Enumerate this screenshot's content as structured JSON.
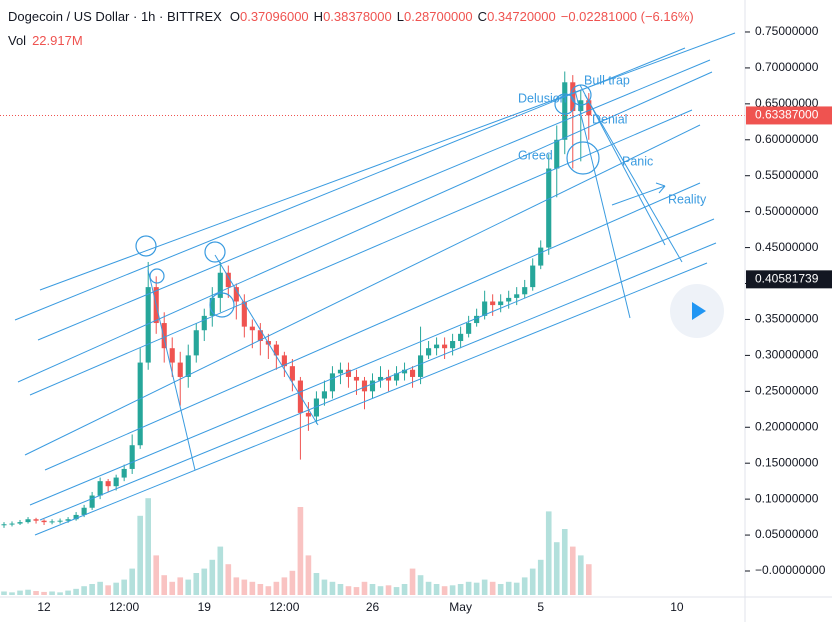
{
  "chart_data": {
    "type": "candlestick",
    "title": "Dogecoin / US Dollar · 1h · BITTREX",
    "ohlc_legend": [
      {
        "key": "O",
        "value": "0.37096000"
      },
      {
        "key": "H",
        "value": "0.38378000"
      },
      {
        "key": "L",
        "value": "0.28700000"
      },
      {
        "key": "C",
        "value": "0.34720000"
      }
    ],
    "change": "−0.02281000 (−6.16%)",
    "volume_legend": {
      "key": "Vol",
      "value": "22.917M"
    },
    "up_color": "#26a69a",
    "down_color": "#ef5350",
    "categories": [
      null,
      null,
      null,
      null,
      null,
      "12",
      null,
      null,
      null,
      null,
      null,
      null,
      null,
      null,
      null,
      "12:00",
      null,
      null,
      null,
      null,
      null,
      null,
      null,
      null,
      null,
      "19",
      null,
      null,
      null,
      null,
      null,
      null,
      null,
      null,
      null,
      "12:00",
      null,
      null,
      null,
      null,
      null,
      null,
      null,
      null,
      null,
      null,
      "26",
      null,
      null,
      null,
      null,
      null,
      null,
      null,
      null,
      null,
      null,
      "May",
      null,
      null,
      null,
      null,
      null,
      null,
      null,
      null,
      null,
      "5",
      null,
      null,
      null,
      null,
      null,
      null,
      null,
      null,
      null,
      null,
      null,
      null,
      null,
      null,
      null,
      null,
      "10",
      null,
      null,
      null,
      null,
      null,
      null,
      null,
      null
    ],
    "open": [
      0.064,
      0.065,
      0.066,
      0.068,
      0.072,
      0.07,
      0.068,
      0.069,
      0.07,
      0.072,
      0.078,
      0.088,
      0.105,
      0.125,
      0.118,
      0.13,
      0.142,
      0.175,
      0.29,
      0.395,
      0.345,
      0.31,
      0.29,
      0.27,
      0.3,
      0.335,
      0.355,
      0.38,
      0.415,
      0.395,
      0.375,
      0.34,
      0.335,
      0.32,
      0.315,
      0.3,
      0.285,
      0.265,
      0.22,
      0.215,
      0.24,
      0.25,
      0.275,
      0.28,
      0.27,
      0.265,
      0.25,
      0.265,
      0.27,
      0.265,
      0.275,
      0.28,
      0.27,
      0.3,
      0.31,
      0.315,
      0.31,
      0.32,
      0.33,
      0.345,
      0.355,
      0.375,
      0.37,
      0.375,
      0.38,
      0.385,
      0.395,
      0.425,
      0.45,
      0.56,
      0.6,
      0.68,
      0.64,
      0.655,
      null,
      null,
      null,
      null,
      null,
      null,
      null,
      null,
      null,
      null,
      null,
      null,
      null,
      null,
      null,
      null,
      null,
      null,
      null
    ],
    "high": [
      0.068,
      0.069,
      0.071,
      0.075,
      0.074,
      0.072,
      0.072,
      0.073,
      0.075,
      0.082,
      0.092,
      0.11,
      0.13,
      0.128,
      0.134,
      0.148,
      0.19,
      0.31,
      0.43,
      0.41,
      0.36,
      0.325,
      0.305,
      0.315,
      0.345,
      0.365,
      0.395,
      0.43,
      0.425,
      0.4,
      0.385,
      0.35,
      0.345,
      0.33,
      0.32,
      0.305,
      0.295,
      0.27,
      0.235,
      0.25,
      0.265,
      0.285,
      0.29,
      0.29,
      0.28,
      0.27,
      0.275,
      0.285,
      0.28,
      0.285,
      0.29,
      0.285,
      0.34,
      0.32,
      0.325,
      0.325,
      0.33,
      0.34,
      0.355,
      0.365,
      0.39,
      0.385,
      0.385,
      0.39,
      0.395,
      0.405,
      0.435,
      0.46,
      0.58,
      0.62,
      0.695,
      0.69,
      0.67,
      0.665,
      null,
      null,
      null,
      null,
      null,
      null,
      null,
      null,
      null,
      null,
      null,
      null,
      null,
      null,
      null,
      null,
      null,
      null,
      null
    ],
    "low": [
      0.06,
      0.062,
      0.064,
      0.066,
      0.066,
      0.064,
      0.065,
      0.066,
      0.067,
      0.07,
      0.075,
      0.085,
      0.1,
      0.11,
      0.112,
      0.125,
      0.135,
      0.17,
      0.28,
      0.33,
      0.29,
      0.27,
      0.23,
      0.255,
      0.29,
      0.32,
      0.34,
      0.36,
      0.38,
      0.35,
      0.325,
      0.31,
      0.3,
      0.295,
      0.28,
      0.27,
      0.25,
      0.155,
      0.195,
      0.205,
      0.23,
      0.24,
      0.26,
      0.255,
      0.245,
      0.225,
      0.24,
      0.255,
      0.25,
      0.258,
      0.265,
      0.255,
      0.26,
      0.295,
      0.3,
      0.295,
      0.3,
      0.31,
      0.325,
      0.34,
      0.35,
      0.355,
      0.36,
      0.365,
      0.37,
      0.38,
      0.39,
      0.42,
      0.44,
      0.52,
      0.58,
      0.56,
      0.57,
      0.6,
      null,
      null,
      null,
      null,
      null,
      null,
      null,
      null,
      null,
      null,
      null,
      null,
      null,
      null,
      null,
      null,
      null,
      null,
      null
    ],
    "close": [
      0.065,
      0.066,
      0.068,
      0.072,
      0.07,
      0.068,
      0.069,
      0.07,
      0.072,
      0.078,
      0.088,
      0.105,
      0.125,
      0.118,
      0.13,
      0.142,
      0.175,
      0.29,
      0.395,
      0.345,
      0.31,
      0.29,
      0.27,
      0.3,
      0.335,
      0.355,
      0.38,
      0.415,
      0.395,
      0.375,
      0.34,
      0.335,
      0.32,
      0.315,
      0.3,
      0.285,
      0.265,
      0.22,
      0.215,
      0.24,
      0.25,
      0.275,
      0.28,
      0.27,
      0.265,
      0.25,
      0.265,
      0.27,
      0.265,
      0.275,
      0.28,
      0.27,
      0.3,
      0.31,
      0.315,
      0.31,
      0.32,
      0.33,
      0.345,
      0.355,
      0.375,
      0.37,
      0.375,
      0.38,
      0.385,
      0.395,
      0.425,
      0.45,
      0.56,
      0.6,
      0.68,
      0.64,
      0.655,
      0.634,
      null,
      null,
      null,
      null,
      null,
      null,
      null,
      null,
      null,
      null,
      null,
      null,
      null,
      null,
      null,
      null,
      null,
      null,
      null
    ],
    "volume": [
      8,
      6,
      10,
      12,
      9,
      7,
      8,
      6,
      10,
      14,
      20,
      25,
      30,
      22,
      28,
      35,
      60,
      180,
      220,
      90,
      45,
      30,
      40,
      35,
      50,
      60,
      80,
      110,
      70,
      40,
      35,
      30,
      25,
      20,
      30,
      40,
      55,
      200,
      90,
      50,
      35,
      30,
      25,
      20,
      18,
      30,
      25,
      20,
      22,
      18,
      25,
      60,
      45,
      30,
      25,
      20,
      22,
      25,
      30,
      28,
      35,
      30,
      25,
      30,
      28,
      40,
      60,
      80,
      190,
      120,
      150,
      110,
      90,
      70,
      null,
      null,
      null,
      null,
      null,
      null,
      null,
      null,
      null,
      null,
      null,
      null,
      null,
      null,
      null,
      null,
      null,
      null,
      null
    ],
    "volume_lim": [
      0,
      250
    ],
    "ylim": [
      -0.0334,
      0.7945
    ],
    "yticks": [
      {
        "value": 0.75,
        "label": "0.75000000"
      },
      {
        "value": 0.7,
        "label": "0.70000000"
      },
      {
        "value": 0.65,
        "label": "0.65000000"
      },
      {
        "value": 0.6,
        "label": "0.60000000"
      },
      {
        "value": 0.55,
        "label": "0.55000000"
      },
      {
        "value": 0.5,
        "label": "0.50000000"
      },
      {
        "value": 0.45,
        "label": "0.45000000"
      },
      {
        "value": 0.4,
        "label": "0.40000000"
      },
      {
        "value": 0.35,
        "label": "0.35000000"
      },
      {
        "value": 0.3,
        "label": "0.30000000"
      },
      {
        "value": 0.25,
        "label": "0.25000000"
      },
      {
        "value": 0.2,
        "label": "0.20000000"
      },
      {
        "value": 0.15,
        "label": "0.15000000"
      },
      {
        "value": 0.1,
        "label": "0.10000000"
      },
      {
        "value": 0.05,
        "label": "0.05000000"
      },
      {
        "value": 0,
        "label": "−0.00000000"
      }
    ],
    "last_price": {
      "value": 0.63387,
      "label": "0.63387000"
    },
    "crosshair_price": {
      "value": 0.40581739,
      "label": "0.40581739"
    },
    "annotations": [
      "Delusion",
      "Bull trap",
      "Denial",
      "Greed",
      "Panic",
      "Reality"
    ]
  }
}
